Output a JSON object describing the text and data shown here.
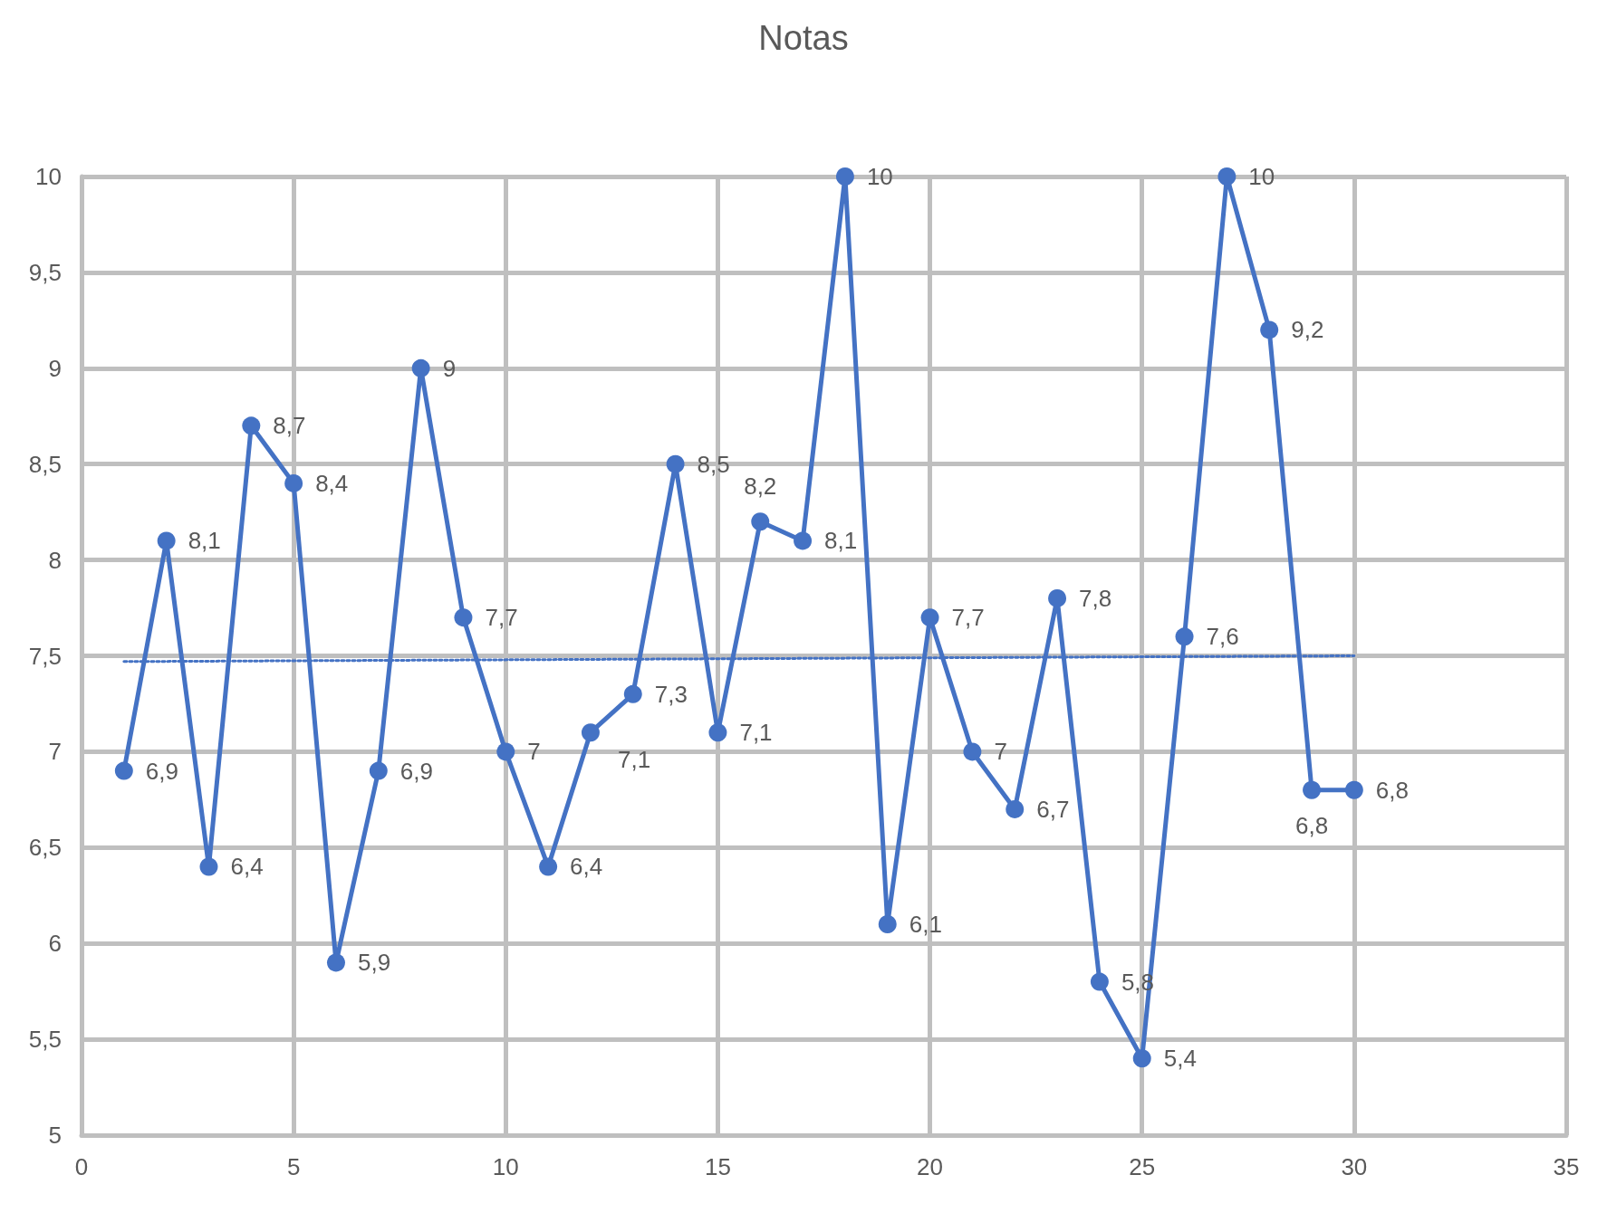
{
  "chart_data": {
    "type": "line",
    "title": "Notas",
    "x": [
      1,
      2,
      3,
      4,
      5,
      6,
      7,
      8,
      9,
      10,
      11,
      12,
      13,
      14,
      15,
      16,
      17,
      18,
      19,
      20,
      21,
      22,
      23,
      24,
      25,
      26,
      27,
      28,
      29,
      30
    ],
    "xlim": [
      0,
      35
    ],
    "xticks": [
      0,
      5,
      10,
      15,
      20,
      25,
      30,
      35
    ],
    "ylim": [
      5,
      10
    ],
    "yticks": [
      5,
      {
        "value": 5.5,
        "label": "5,5"
      },
      6,
      {
        "value": 6.5,
        "label": "6,5"
      },
      7,
      {
        "value": 7.5,
        "label": "7,5"
      },
      8,
      {
        "value": 8.5,
        "label": "8,5"
      },
      9,
      {
        "value": 9.5,
        "label": "9,5"
      },
      10
    ],
    "grid": true,
    "marker": "circle",
    "line_style": "solid",
    "series": [
      {
        "color": "#4472c4",
        "values": [
          6.9,
          8.1,
          6.4,
          8.7,
          8.4,
          5.9,
          6.9,
          9,
          7.7,
          7,
          6.4,
          7.1,
          7.3,
          8.5,
          7.1,
          8.2,
          8.1,
          10,
          6.1,
          7.7,
          7,
          6.7,
          7.8,
          5.8,
          5.4,
          7.6,
          10,
          9.2,
          6.8,
          6.8
        ],
        "value_labels": [
          "6,9",
          "8,1",
          "6,4",
          "8,7",
          "8,4",
          "5,9",
          "6,9",
          "9",
          "7,7",
          "7",
          "6,4",
          "7,1",
          "7,3",
          "8,5",
          "7,1",
          "8,2",
          "8,1",
          "10",
          "6,1",
          "7,7",
          "7",
          "6,7",
          "7,8",
          "5,8",
          "5,4",
          "7,6",
          "10",
          "9,2",
          "6,8",
          "6,8"
        ]
      },
      {
        "type": "line",
        "x": [
          1,
          30
        ],
        "values": [
          7.47,
          7.5
        ],
        "color": "#4472c4",
        "marker": "none",
        "line_style": "dotted"
      }
    ]
  }
}
